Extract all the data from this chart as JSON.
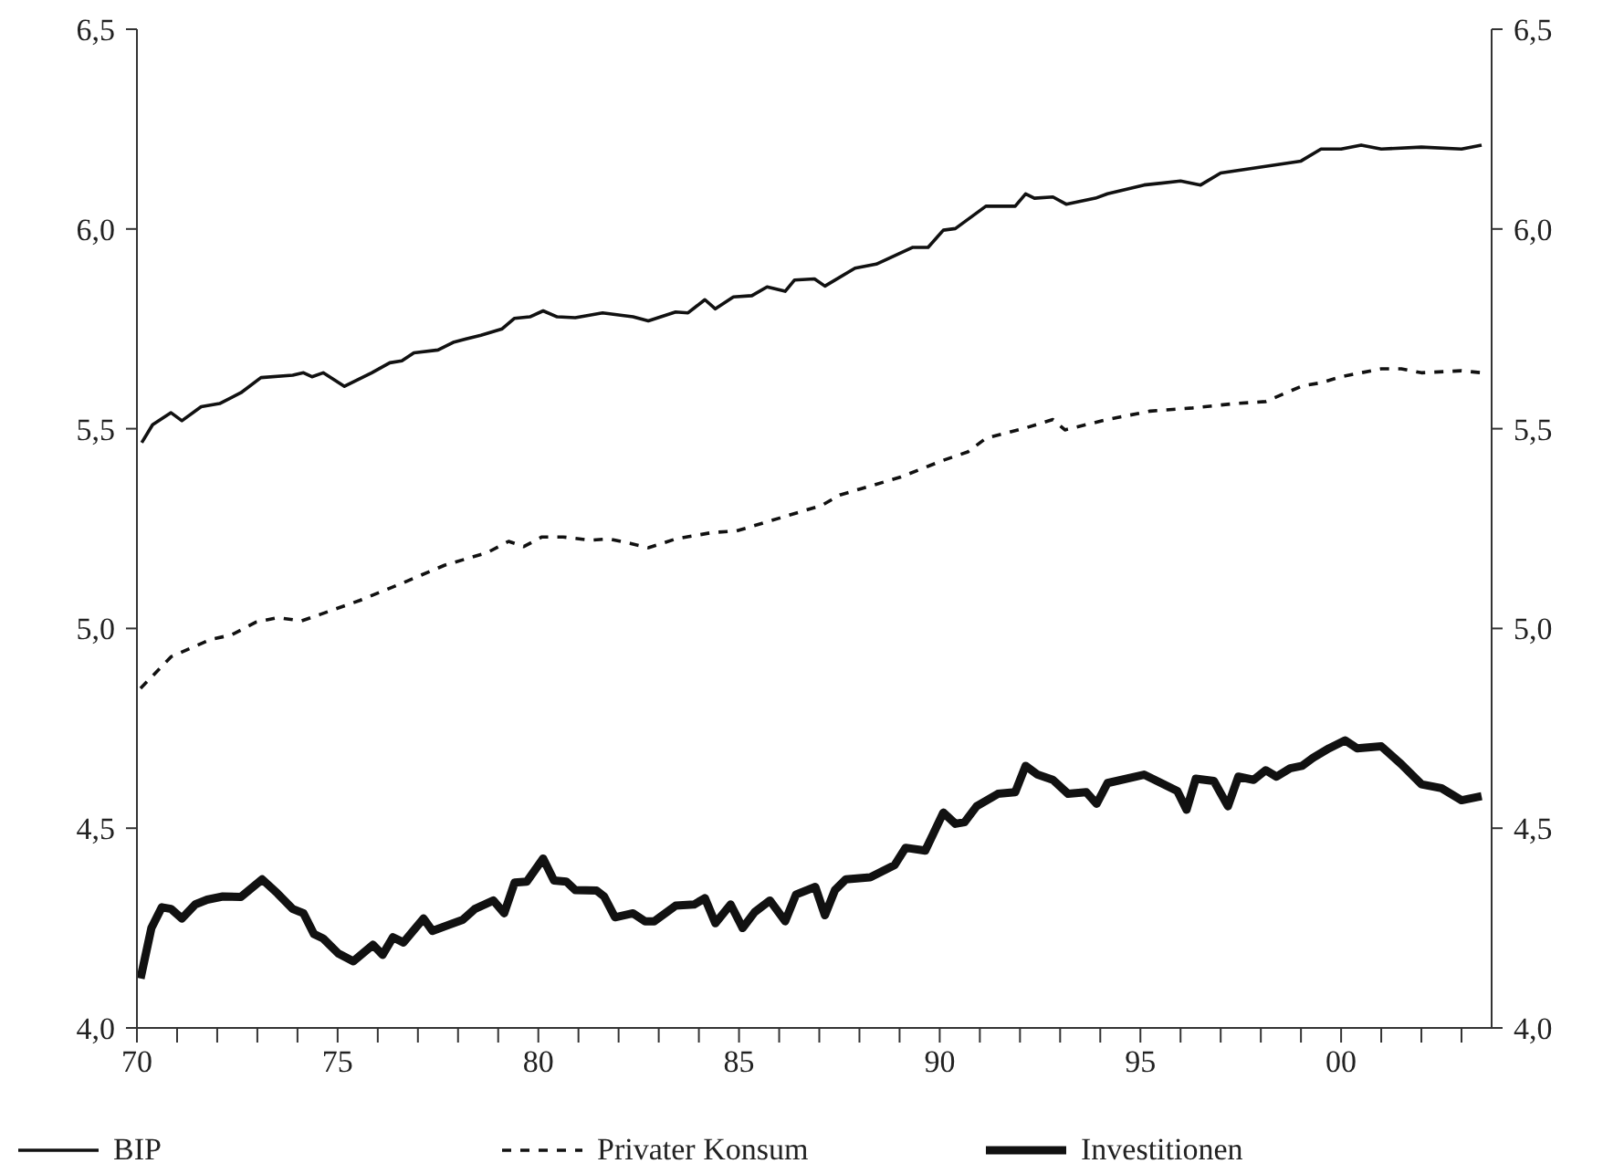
{
  "chart_data": {
    "type": "line",
    "xlim": [
      1970,
      2003.75
    ],
    "xticks": [
      {
        "value": 1970,
        "label": "70"
      },
      {
        "value": 1971,
        "label": null
      },
      {
        "value": 1972,
        "label": null
      },
      {
        "value": 1973,
        "label": null
      },
      {
        "value": 1974,
        "label": null
      },
      {
        "value": 1975,
        "label": "75"
      },
      {
        "value": 1976,
        "label": null
      },
      {
        "value": 1977,
        "label": null
      },
      {
        "value": 1978,
        "label": null
      },
      {
        "value": 1979,
        "label": null
      },
      {
        "value": 1980,
        "label": "80"
      },
      {
        "value": 1981,
        "label": null
      },
      {
        "value": 1982,
        "label": null
      },
      {
        "value": 1983,
        "label": null
      },
      {
        "value": 1984,
        "label": null
      },
      {
        "value": 1985,
        "label": "85"
      },
      {
        "value": 1986,
        "label": null
      },
      {
        "value": 1987,
        "label": null
      },
      {
        "value": 1988,
        "label": null
      },
      {
        "value": 1989,
        "label": null
      },
      {
        "value": 1990,
        "label": "90"
      },
      {
        "value": 1991,
        "label": null
      },
      {
        "value": 1992,
        "label": null
      },
      {
        "value": 1993,
        "label": null
      },
      {
        "value": 1994,
        "label": null
      },
      {
        "value": 1995,
        "label": "95"
      },
      {
        "value": 1996,
        "label": null
      },
      {
        "value": 1997,
        "label": null
      },
      {
        "value": 1998,
        "label": null
      },
      {
        "value": 1999,
        "label": null
      },
      {
        "value": 2000,
        "label": "00"
      },
      {
        "value": 2001,
        "label": null
      },
      {
        "value": 2002,
        "label": null
      },
      {
        "value": 2003,
        "label": null
      }
    ],
    "ylim": [
      4,
      6.5
    ],
    "yticks": [
      {
        "value": 4,
        "label": "4,0"
      },
      {
        "value": 4.5,
        "label": "4,5"
      },
      {
        "value": 5,
        "label": "5,0"
      },
      {
        "value": 5.5,
        "label": "5,5"
      },
      {
        "value": 6,
        "label": "6,0"
      },
      {
        "value": 6.5,
        "label": "6,5"
      }
    ],
    "y2lim": [
      4,
      6.5
    ],
    "y2ticks": [
      {
        "value": 4,
        "label": "4,0"
      },
      {
        "value": 4.5,
        "label": "4,5"
      },
      {
        "value": 5,
        "label": "5,0"
      },
      {
        "value": 5.5,
        "label": "5,5"
      },
      {
        "value": 6,
        "label": "6,0"
      },
      {
        "value": 6.5,
        "label": "6,5"
      }
    ],
    "grid": false,
    "legend": "bottom",
    "marker": "none",
    "series": [
      {
        "name": "BIP",
        "color": "#111111",
        "line_style": "solid",
        "x": [
          1970.12,
          1970.39,
          1970.85,
          1971.12,
          1971.6,
          1972.06,
          1972.59,
          1973.09,
          1973.88,
          1974.15,
          1974.36,
          1974.64,
          1975.17,
          1975.85,
          1976.3,
          1976.6,
          1976.9,
          1977.5,
          1977.9,
          1978.57,
          1979.1,
          1979.4,
          1979.79,
          1980.12,
          1980.47,
          1980.92,
          1981.6,
          1982.36,
          1982.74,
          1983.42,
          1983.73,
          1984.15,
          1984.41,
          1984.86,
          1985.32,
          1985.7,
          1986.15,
          1986.38,
          1986.88,
          1987.14,
          1987.89,
          1988.42,
          1989.33,
          1989.71,
          1990.09,
          1990.39,
          1991.15,
          1991.88,
          1992.14,
          1992.36,
          1992.82,
          1993.15,
          1993.88,
          1994.18,
          1995.09,
          1996,
          1996.5,
          1997,
          1998,
          1999,
          1999.5,
          2000,
          2000.5,
          2001,
          2002,
          2003,
          2003.5
        ],
        "values": [
          5.465,
          5.51,
          5.54,
          5.52,
          5.555,
          5.563,
          5.59,
          5.628,
          5.634,
          5.64,
          5.63,
          5.64,
          5.606,
          5.64,
          5.665,
          5.67,
          5.69,
          5.697,
          5.717,
          5.734,
          5.75,
          5.776,
          5.78,
          5.795,
          5.78,
          5.778,
          5.79,
          5.78,
          5.77,
          5.792,
          5.79,
          5.823,
          5.8,
          5.83,
          5.833,
          5.855,
          5.844,
          5.872,
          5.875,
          5.857,
          5.902,
          5.912,
          5.954,
          5.954,
          5.997,
          6.001,
          6.057,
          6.057,
          6.088,
          6.077,
          6.08,
          6.062,
          6.077,
          6.088,
          6.11,
          6.12,
          6.11,
          6.14,
          6.155,
          6.17,
          6.2,
          6.2,
          6.21,
          6.2,
          6.205,
          6.2,
          6.21
        ]
      },
      {
        "name": "Privater Konsum",
        "color": "#111111",
        "line_style": "dashed",
        "x": [
          1970.09,
          1970.85,
          1971.83,
          1972.36,
          1972.97,
          1973.5,
          1974.1,
          1974.56,
          1975.55,
          1976.6,
          1977.66,
          1978.73,
          1979.26,
          1979.64,
          1980.09,
          1980.62,
          1981.3,
          1981.75,
          1982.29,
          1982.74,
          1983.42,
          1984.33,
          1984.94,
          1986,
          1987.06,
          1987.51,
          1988.05,
          1989.03,
          1990.09,
          1990.7,
          1991.15,
          1992.14,
          1992.82,
          1993.12,
          1994.18,
          1995.24,
          1996.3,
          1997.36,
          1998.12,
          1999.03,
          1999.5,
          2000,
          2000.5,
          2001,
          2001.5,
          2002,
          2003,
          2003.5
        ],
        "values": [
          4.85,
          4.929,
          4.972,
          4.984,
          5.016,
          5.027,
          5.019,
          5.035,
          5.07,
          5.113,
          5.158,
          5.19,
          5.218,
          5.205,
          5.229,
          5.229,
          5.221,
          5.224,
          5.213,
          5.202,
          5.224,
          5.24,
          5.244,
          5.276,
          5.308,
          5.334,
          5.35,
          5.379,
          5.421,
          5.442,
          5.476,
          5.502,
          5.523,
          5.497,
          5.523,
          5.544,
          5.552,
          5.563,
          5.568,
          5.607,
          5.615,
          5.63,
          5.64,
          5.65,
          5.65,
          5.64,
          5.645,
          5.64
        ]
      },
      {
        "name": "Investitionen",
        "color": "#111111",
        "line_style": "solid",
        "x": [
          1970.09,
          1970.36,
          1970.62,
          1970.85,
          1971.12,
          1971.45,
          1971.75,
          1972.14,
          1972.59,
          1973.12,
          1973.5,
          1973.88,
          1974.15,
          1974.41,
          1974.64,
          1975.01,
          1975.39,
          1975.88,
          1976.12,
          1976.38,
          1976.64,
          1977.14,
          1977.36,
          1978.12,
          1978.42,
          1978.88,
          1979.15,
          1979.41,
          1979.71,
          1980.12,
          1980.39,
          1980.7,
          1980.92,
          1981.45,
          1981.64,
          1981.91,
          1982.36,
          1982.66,
          1982.89,
          1983.42,
          1983.88,
          1984.15,
          1984.41,
          1984.79,
          1985.09,
          1985.39,
          1985.77,
          1986.15,
          1986.42,
          1986.9,
          1987.14,
          1987.39,
          1987.66,
          1988.27,
          1988.88,
          1989.15,
          1989.64,
          1990.09,
          1990.39,
          1990.62,
          1990.92,
          1991.45,
          1991.88,
          1992.14,
          1992.44,
          1992.82,
          1993.2,
          1993.65,
          1993.91,
          1994.18,
          1995.09,
          1995.92,
          1996.15,
          1996.38,
          1996.83,
          1997.18,
          1997.44,
          1997.82,
          1998.12,
          1998.39,
          1998.73,
          1999.03,
          1999.3,
          1999.7,
          2000.1,
          2000.4,
          2001,
          2001.5,
          2002,
          2002.5,
          2003,
          2003.5
        ],
        "values": [
          4.124,
          4.25,
          4.302,
          4.298,
          4.274,
          4.309,
          4.321,
          4.329,
          4.328,
          4.372,
          4.337,
          4.298,
          4.287,
          4.235,
          4.224,
          4.187,
          4.167,
          4.208,
          4.183,
          4.227,
          4.214,
          4.274,
          4.243,
          4.271,
          4.298,
          4.319,
          4.287,
          4.364,
          4.366,
          4.424,
          4.369,
          4.366,
          4.345,
          4.344,
          4.329,
          4.277,
          4.287,
          4.267,
          4.267,
          4.306,
          4.309,
          4.325,
          4.262,
          4.309,
          4.25,
          4.29,
          4.319,
          4.267,
          4.334,
          4.353,
          4.282,
          4.345,
          4.372,
          4.377,
          4.408,
          4.451,
          4.444,
          4.539,
          4.511,
          4.515,
          4.555,
          4.586,
          4.59,
          4.656,
          4.634,
          4.621,
          4.586,
          4.59,
          4.561,
          4.613,
          4.634,
          4.593,
          4.546,
          4.624,
          4.618,
          4.555,
          4.629,
          4.621,
          4.645,
          4.629,
          4.65,
          4.656,
          4.676,
          4.7,
          4.72,
          4.7,
          4.705,
          4.66,
          4.61,
          4.6,
          4.57,
          4.58
        ]
      }
    ]
  }
}
